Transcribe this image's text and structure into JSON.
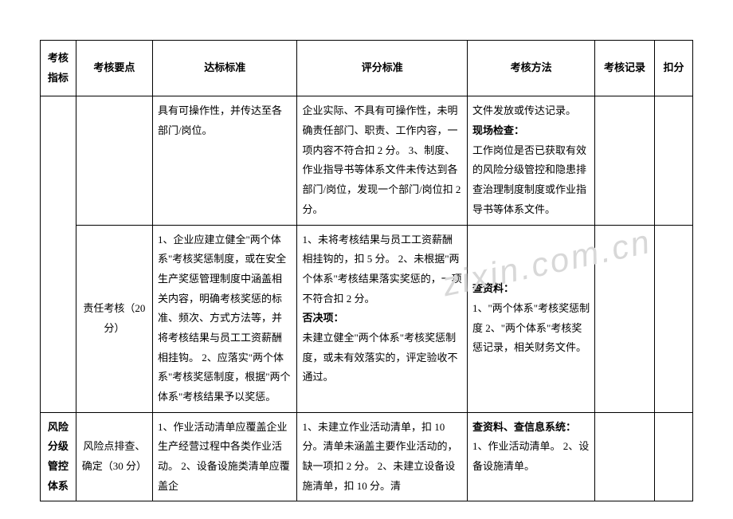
{
  "watermark": "zixin.com.cn",
  "headers": {
    "c1": "考核指标",
    "c2": "考核要点",
    "c3": "达标标准",
    "c4": "评分标准",
    "c5": "考核方法",
    "c6": "考核记录",
    "c7": "扣分"
  },
  "rows": [
    {
      "c1": "",
      "c2": "",
      "c3": "具有可操作性，并传达至各部门/岗位。",
      "c4": "企业实际、不具有可操作性，未明确责任部门、职责、工作内容，一项内容不符合扣 2 分。\n3、制度、作业指导书等体系文件未传达到各部门/岗位，发现一个部门/岗位扣 2 分。",
      "c5_pre": "文件发放或传达记录。",
      "c5_bold": "现场检查：",
      "c5_post": "工作岗位是否已获取有效的风险分级管控和隐患排查治理制度制度或作业指导书等体系文件。",
      "c6": "",
      "c7": ""
    },
    {
      "c1": "",
      "c2": "责任考核（20 分）",
      "c3": "1、企业应建立健全\"两个体系\"考核奖惩制度，或在安全生产奖惩管理制度中涵盖相关内容，明确考核奖惩的标准、频次、方式方法等，并将考核结果与员工工资薪酬相挂钩。\n2、应落实\"两个体系\"考核奖惩制度，根据\"两个体系\"考核结果予以奖惩。",
      "c4_pre": "1、未将考核结果与员工工资薪酬相挂钩的，扣 5 分。\n2、未根据\"两个体系\"考核结果落实奖惩的，一项不符合扣 2 分。",
      "c4_bold": "否决项：",
      "c4_post": "未建立健全\"两个体系\"考核奖惩制度，或未有效落实的，评定验收不通过。",
      "c5_bold": "查资料：",
      "c5_post": "1、\"两个体系\"考核奖惩制度\n2、\"两个体系\"考核奖惩记录，相关财务文件。",
      "c6": "",
      "c7": ""
    },
    {
      "c1": "风险分级管控体系",
      "c2": "风险点排查、确定（30 分）",
      "c3": "1、作业活动清单应覆盖企业生产经营过程中各类作业活动。\n2、设备设施类清单应覆盖企",
      "c4": "1、未建立作业活动清单，扣 10 分。清单未涵盖主要作业活动的，缺一项扣 2 分。\n2、未建立设备设施清单，扣 10 分。清",
      "c5_bold": "查资料、查信息系统：",
      "c5_post": "1、作业活动清单。\n2、设备设施清单。",
      "c6": "",
      "c7": ""
    }
  ]
}
